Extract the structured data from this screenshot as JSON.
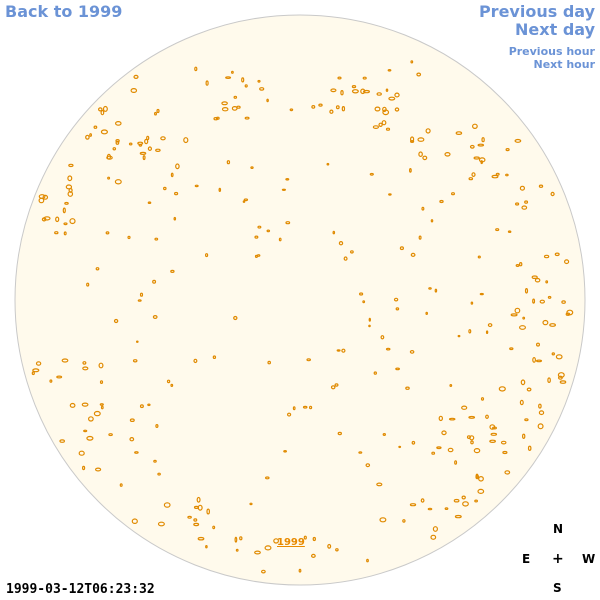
{
  "nav": {
    "back_label": "Back to 1999",
    "prev_day_label": "Previous day",
    "next_day_label": "Next day",
    "prev_hour_label": "Previous hour",
    "next_hour_label": "Next hour"
  },
  "timestamp": "1999-03-12T06:23:32",
  "year_label": "1999",
  "compass": {
    "north": "N",
    "south": "S",
    "east": "E",
    "west": "W",
    "center": "+"
  },
  "colors": {
    "disk_fill": "#fffaec",
    "disk_border": "#c9c9c9",
    "contour": "#e08a00",
    "link": "#6b93d6"
  }
}
